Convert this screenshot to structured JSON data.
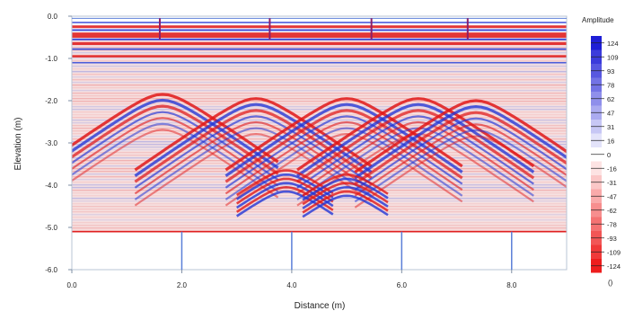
{
  "chart_data": {
    "type": "heatmap",
    "title": "",
    "xlabel": "Distance (m)",
    "ylabel": "Elevation (m)",
    "xlim": [
      0.0,
      9.0
    ],
    "ylim": [
      -6.0,
      0.0
    ],
    "x_ticks": [
      "0.0",
      "2.0",
      "4.0",
      "6.0",
      "8.0"
    ],
    "y_ticks": [
      "0.0",
      "-1.0",
      "-2.0",
      "-3.0",
      "-4.0",
      "-5.0",
      "-6.0"
    ],
    "colorbar": {
      "title": "Amplitude",
      "labels": [
        "124",
        "109",
        "93",
        "78",
        "62",
        "47",
        "31",
        "16",
        "0",
        "-16",
        "-31",
        "-47",
        "-62",
        "-78",
        "-93",
        "-109",
        "-124"
      ],
      "unit": "()",
      "high_color": "#1f1fd6",
      "mid_color": "#ffffff",
      "low_color": "#ee1d1d"
    },
    "data_bottom_elevation": -5.1,
    "hyperbola_apexes": [
      {
        "x": 1.65,
        "y": -1.85
      },
      {
        "x": 3.35,
        "y": -1.95
      },
      {
        "x": 5.0,
        "y": -1.95
      },
      {
        "x": 6.3,
        "y": -1.95
      },
      {
        "x": 7.35,
        "y": -2.0
      }
    ],
    "top_markers_x": [
      1.6,
      3.6,
      5.45,
      7.2
    ],
    "bottom_markers_x": [
      2.0,
      4.0,
      6.0,
      8.0
    ]
  }
}
